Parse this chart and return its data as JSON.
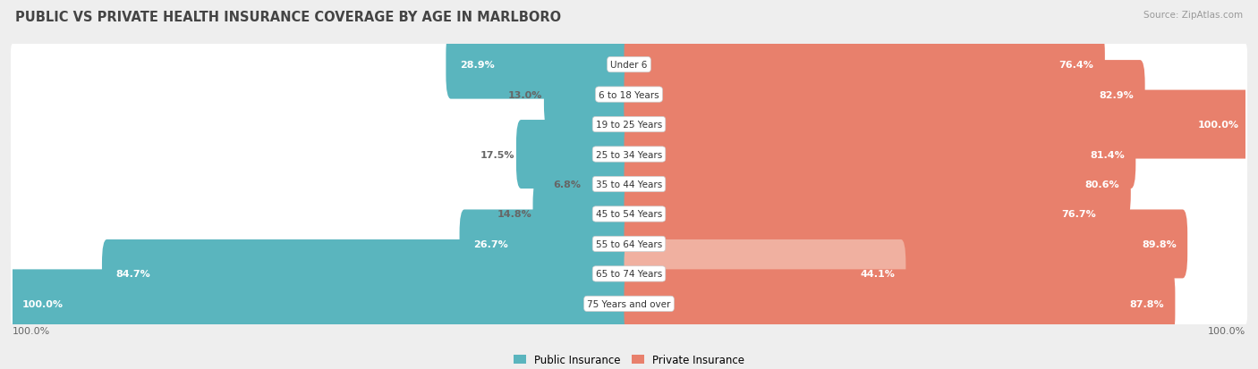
{
  "title": "PUBLIC VS PRIVATE HEALTH INSURANCE COVERAGE BY AGE IN MARLBORO",
  "source": "Source: ZipAtlas.com",
  "categories": [
    "Under 6",
    "6 to 18 Years",
    "19 to 25 Years",
    "25 to 34 Years",
    "35 to 44 Years",
    "45 to 54 Years",
    "55 to 64 Years",
    "65 to 74 Years",
    "75 Years and over"
  ],
  "public_values": [
    28.9,
    13.0,
    0.0,
    17.5,
    6.8,
    14.8,
    26.7,
    84.7,
    100.0
  ],
  "private_values": [
    76.4,
    82.9,
    100.0,
    81.4,
    80.6,
    76.7,
    89.8,
    44.1,
    87.8
  ],
  "public_color": "#5ab5be",
  "private_color": "#e8806c",
  "private_color_light": "#f0b0a0",
  "bg_color": "#eeeeee",
  "row_bg_even": "#f8f8f8",
  "row_bg_odd": "#f0f0f0",
  "title_color": "#444444",
  "text_white": "#ffffff",
  "text_gray": "#666666",
  "center_bubble_color": "#ffffff",
  "title_fontsize": 10.5,
  "bar_fontsize": 8.0,
  "category_fontsize": 7.5,
  "legend_fontsize": 8.5,
  "source_fontsize": 7.5,
  "light_private_rows": [
    7
  ],
  "max_val": 100.0
}
